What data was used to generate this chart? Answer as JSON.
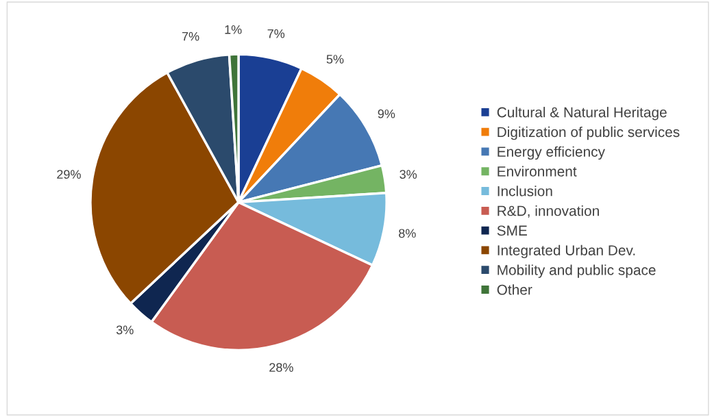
{
  "chart_data": {
    "type": "pie",
    "categories": [
      "Cultural & Natural Heritage",
      "Digitization of public services",
      "Energy efficiency",
      "Environment",
      "Inclusion",
      "R&D, innovation",
      "SME",
      "Integrated Urban Dev.",
      "Mobility and public space",
      "Other"
    ],
    "values": [
      7,
      5,
      9,
      3,
      8,
      28,
      3,
      29,
      7,
      1
    ],
    "colors": [
      "#1a3f94",
      "#f07d0a",
      "#4678b4",
      "#74b463",
      "#76bbdc",
      "#c85c52",
      "#0f2650",
      "#8b4600",
      "#2b4a6c",
      "#3f7439"
    ],
    "value_labels": [
      "7%",
      "5%",
      "9%",
      "3%",
      "8%",
      "28%",
      "3%",
      "29%",
      "7%",
      "1%"
    ],
    "legend": "right"
  }
}
